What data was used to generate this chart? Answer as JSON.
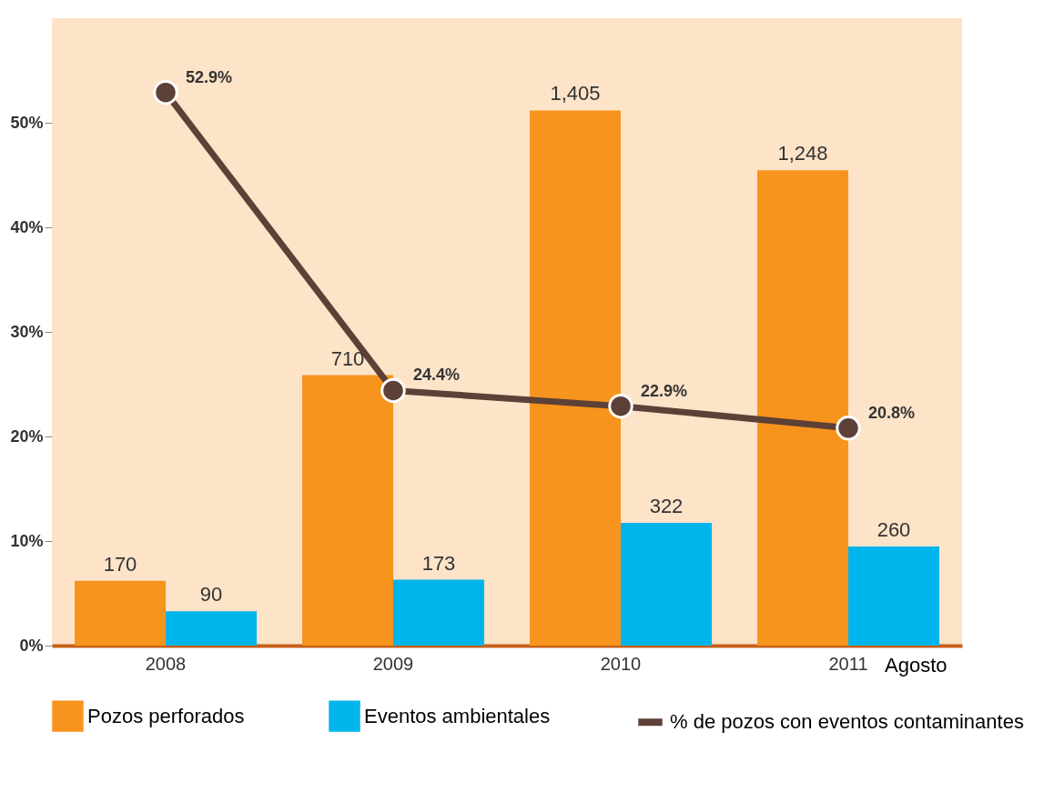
{
  "chart_data": {
    "type": "bar",
    "categories": [
      "2008",
      "2009",
      "2010",
      "2011"
    ],
    "series": [
      {
        "name": "Pozos perforados",
        "axis": "y2",
        "color": "#f7941d",
        "values": [
          170,
          710,
          1405,
          1248
        ],
        "value_labels": [
          "170",
          "710",
          "1,405",
          "1,248"
        ]
      },
      {
        "name": "Eventos ambientales",
        "axis": "y2",
        "color": "#00b5ec",
        "values": [
          90,
          173,
          322,
          260
        ],
        "value_labels": [
          "90",
          "173",
          "322",
          "260"
        ]
      },
      {
        "name": "% de pozos con eventos contaminantes",
        "type": "line",
        "color": "#5d4037",
        "values": [
          52.9,
          24.4,
          22.9,
          20.8
        ],
        "value_labels": [
          "52.9%",
          "24.4%",
          "22.9%",
          "20.8%"
        ]
      }
    ],
    "ylim": [
      0,
      60
    ],
    "yticks": [
      {
        "value": 0,
        "label": "0%"
      },
      {
        "value": 10,
        "label": "10%"
      },
      {
        "value": 20,
        "label": "20%"
      },
      {
        "value": 30,
        "label": "30%"
      },
      {
        "value": 40,
        "label": "40%"
      },
      {
        "value": 50,
        "label": "50%"
      }
    ],
    "annotations": [
      "Agosto"
    ],
    "grid": false,
    "legend": "bottom",
    "marker": "circle"
  }
}
